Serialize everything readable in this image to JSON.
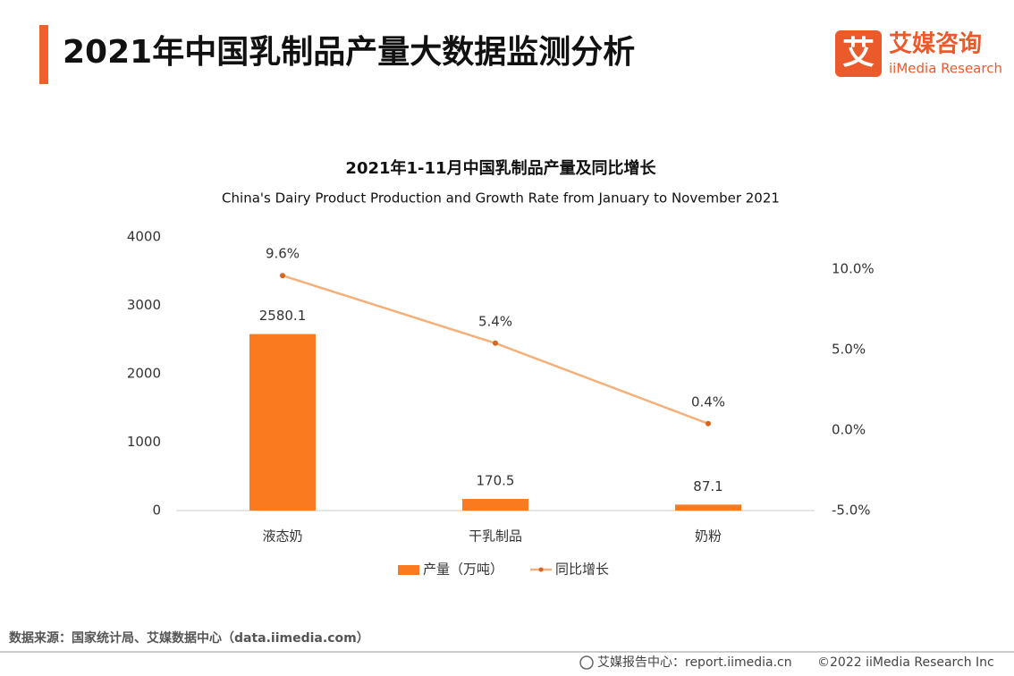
{
  "header": {
    "title": "2021年中国乳制品产量大数据监测分析",
    "logo_icon": "艾",
    "logo_name": "艾媒咨询",
    "logo_sub": "iiMedia Research"
  },
  "chart_data": {
    "type": "bar",
    "title": "2021年1-11月中国乳制品产量及同比增长",
    "subtitle": "China's Dairy Product Production and Growth Rate from January to November 2021",
    "categories": [
      "液态奶",
      "干乳制品",
      "奶粉"
    ],
    "series": [
      {
        "name": "产量（万吨）",
        "color": "#f97a1f",
        "values": [
          2580.1,
          170.5,
          87.1
        ]
      },
      {
        "name": "同比增长",
        "type": "line",
        "axis": "y2",
        "color": "#f5b07a",
        "marker_color": "#d9641c",
        "values": [
          9.6,
          5.4,
          0.4
        ],
        "value_labels": [
          "9.6%",
          "5.4%",
          "0.4%"
        ]
      }
    ],
    "ylim": [
      0,
      4000
    ],
    "yticks": [
      0,
      1000,
      2000,
      3000,
      4000
    ],
    "y2lim": [
      -5,
      12
    ],
    "y2ticks": [
      {
        "value": -5,
        "label": "-5.0%"
      },
      {
        "value": 0,
        "label": "0.0%"
      },
      {
        "value": 5,
        "label": "5.0%"
      },
      {
        "value": 10,
        "label": "10.0%"
      }
    ],
    "legend": "bottom"
  },
  "footer": {
    "source": "数据来源：国家统计局、艾媒数据中心（data.iimedia.com）",
    "report": "艾媒报告中心：report.iimedia.cn",
    "copyright": "©2022  iiMedia Research  Inc"
  }
}
